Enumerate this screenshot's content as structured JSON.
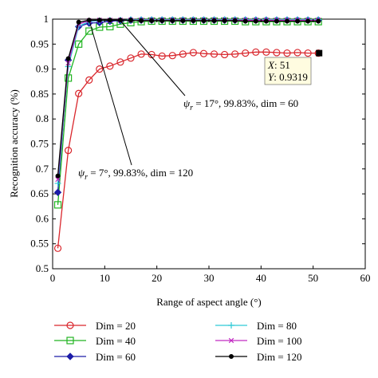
{
  "chart_data": {
    "type": "line",
    "xlabel": "Range of aspect angle (°)",
    "ylabel": "Recognition accuracy (%)",
    "xlim": [
      0,
      60
    ],
    "ylim": [
      0.5,
      1
    ],
    "xticks": [
      "0",
      "10",
      "20",
      "30",
      "40",
      "50",
      "60"
    ],
    "yticks": [
      "0.5",
      "0.55",
      "0.6",
      "0.65",
      "0.7",
      "0.75",
      "0.8",
      "0.85",
      "0.9",
      "0.95",
      "1"
    ],
    "grid": false,
    "legend_position": "bottom",
    "x": [
      1,
      3,
      5,
      7,
      9,
      11,
      13,
      15,
      17,
      19,
      21,
      23,
      25,
      27,
      29,
      31,
      33,
      35,
      37,
      39,
      41,
      43,
      45,
      47,
      49,
      51
    ],
    "series": [
      {
        "name": "Dim = 20",
        "color": "#d9262c",
        "marker": "circle",
        "values": [
          0.541,
          0.737,
          0.851,
          0.878,
          0.9,
          0.906,
          0.914,
          0.922,
          0.93,
          0.929,
          0.926,
          0.927,
          0.93,
          0.933,
          0.931,
          0.93,
          0.929,
          0.93,
          0.932,
          0.934,
          0.934,
          0.933,
          0.932,
          0.933,
          0.932,
          0.9319
        ]
      },
      {
        "name": "Dim = 40",
        "color": "#22b522",
        "marker": "square",
        "values": [
          0.628,
          0.882,
          0.95,
          0.976,
          0.984,
          0.985,
          0.99,
          0.993,
          0.995,
          0.996,
          0.996,
          0.996,
          0.996,
          0.996,
          0.996,
          0.996,
          0.996,
          0.996,
          0.995,
          0.995,
          0.995,
          0.995,
          0.995,
          0.995,
          0.995,
          0.995
        ]
      },
      {
        "name": "Dim = 60",
        "color": "#1c1ca8",
        "marker": "diamond",
        "values": [
          0.653,
          0.918,
          0.985,
          0.992,
          0.993,
          0.996,
          0.997,
          0.998,
          0.998,
          0.998,
          0.998,
          0.998,
          0.998,
          0.998,
          0.998,
          0.998,
          0.998,
          0.998,
          0.998,
          0.998,
          0.998,
          0.998,
          0.998,
          0.998,
          0.998,
          0.998
        ]
      },
      {
        "name": "Dim = 80",
        "color": "#2ec9d6",
        "marker": "plus",
        "values": [
          0.671,
          0.905,
          0.986,
          0.995,
          0.997,
          0.998,
          0.998,
          0.999,
          0.999,
          0.999,
          0.999,
          0.999,
          0.999,
          0.999,
          0.999,
          0.999,
          0.999,
          0.999,
          0.999,
          0.999,
          0.999,
          0.999,
          0.999,
          0.999,
          0.999,
          0.999
        ]
      },
      {
        "name": "Dim = 100",
        "color": "#c22ac2",
        "marker": "x",
        "values": [
          0.679,
          0.912,
          0.99,
          0.997,
          0.998,
          0.998,
          0.998,
          0.998,
          0.998,
          0.998,
          0.998,
          0.998,
          0.998,
          0.998,
          0.998,
          0.998,
          0.998,
          0.998,
          0.998,
          0.998,
          0.998,
          0.998,
          0.998,
          0.998,
          0.998,
          0.998
        ]
      },
      {
        "name": "Dim = 120",
        "color": "#000000",
        "marker": "dot",
        "values": [
          0.686,
          0.921,
          0.994,
          0.998,
          0.998,
          0.998,
          0.998,
          0.998,
          0.997,
          0.997,
          0.997,
          0.997,
          0.997,
          0.997,
          0.997,
          0.997,
          0.997,
          0.997,
          0.996,
          0.996,
          0.996,
          0.996,
          0.996,
          0.996,
          0.996,
          0.996
        ]
      }
    ],
    "annotations": [
      {
        "text_prefix": "ψ",
        "text_sub": "r",
        "text_rest": " = 17°, 99.83%, dim = 60",
        "target": [
          13,
          0.997
        ]
      },
      {
        "text_prefix": "ψ",
        "text_sub": "r",
        "text_rest": " = 7°, 99.83%, dim = 120",
        "target": [
          7,
          0.998
        ]
      }
    ],
    "datatip": {
      "target": [
        51,
        0.9319
      ],
      "x_label": "X",
      "x_value": "51",
      "y_label": "Y",
      "y_value": "0.9319"
    }
  }
}
